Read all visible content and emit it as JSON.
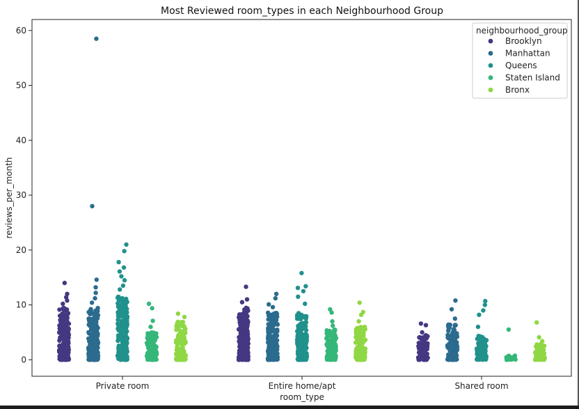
{
  "chart_data": {
    "type": "scatter",
    "title": "Most Reviewed room_types in each Neighbourhood Group",
    "xlabel": "room_type",
    "ylabel": "reviews_per_month",
    "categories": [
      "Private room",
      "Entire home/apt",
      "Shared room"
    ],
    "ylim": [
      -3,
      62
    ],
    "yticks": [
      0,
      10,
      20,
      30,
      40,
      50,
      60
    ],
    "grid": false,
    "legend": {
      "title": "neighbourhood_group",
      "placement": "top-right"
    },
    "series": [
      {
        "name": "Brooklyn",
        "color": "#453781",
        "points": {
          "Private room": {
            "min": 0,
            "dense_max": 9.5,
            "outliers": [
              14.0,
              12.0,
              11.4,
              10.8,
              10.2
            ]
          },
          "Entire home/apt": {
            "min": 0,
            "dense_max": 9.5,
            "outliers": [
              13.3,
              11.0,
              10.5
            ]
          },
          "Shared room": {
            "min": 0,
            "dense_max": 4.5,
            "outliers": [
              6.6,
              6.3,
              5.0
            ]
          }
        }
      },
      {
        "name": "Manhattan",
        "color": "#2b6b8e",
        "points": {
          "Private room": {
            "min": 0,
            "dense_max": 9.5,
            "outliers": [
              58.5,
              28.0,
              14.6,
              13.2,
              12.2,
              11.2,
              10.4
            ]
          },
          "Entire home/apt": {
            "min": 0,
            "dense_max": 8.8,
            "outliers": [
              12.0,
              11.2,
              10.1,
              9.6
            ]
          },
          "Shared room": {
            "min": 0,
            "dense_max": 6.5,
            "outliers": [
              10.8,
              9.2,
              7.5
            ]
          }
        }
      },
      {
        "name": "Queens",
        "color": "#21918c",
        "points": {
          "Private room": {
            "min": 0,
            "dense_max": 11.5,
            "outliers": [
              21.0,
              19.8,
              17.8,
              16.8,
              16.1,
              15.2,
              14.5,
              13.5,
              12.8
            ]
          },
          "Entire home/apt": {
            "min": 0,
            "dense_max": 8.5,
            "outliers": [
              15.8,
              13.4,
              13.1,
              12.5,
              11.5,
              10.2
            ]
          },
          "Shared room": {
            "min": 0,
            "dense_max": 4.5,
            "outliers": [
              10.7,
              10.0,
              9.0,
              8.2,
              6.0
            ]
          }
        }
      },
      {
        "name": "Staten Island",
        "color": "#35b779",
        "points": {
          "Private room": {
            "min": 0,
            "dense_max": 5.0,
            "outliers": [
              10.2,
              9.4,
              7.1,
              6.0
            ]
          },
          "Entire home/apt": {
            "min": 0,
            "dense_max": 5.5,
            "outliers": [
              9.2,
              8.6,
              7.0,
              6.2
            ]
          },
          "Shared room": {
            "min": 0,
            "dense_max": 0.8,
            "outliers": [
              5.5
            ]
          }
        }
      },
      {
        "name": "Bronx",
        "color": "#8fd744",
        "points": {
          "Private room": {
            "min": 0,
            "dense_max": 7.0,
            "outliers": [
              8.4,
              7.8
            ]
          },
          "Entire home/apt": {
            "min": 0,
            "dense_max": 6.0,
            "outliers": [
              10.4,
              8.7,
              8.2,
              7.0
            ]
          },
          "Shared room": {
            "min": 0,
            "dense_max": 3.0,
            "outliers": [
              6.8,
              4.1,
              3.4
            ]
          }
        }
      }
    ]
  }
}
